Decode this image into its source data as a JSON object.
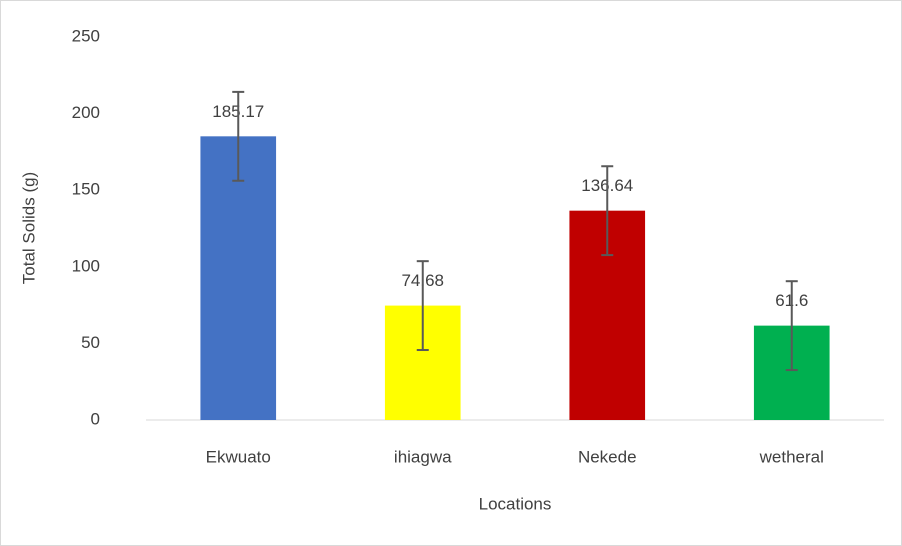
{
  "chart_data": {
    "type": "bar",
    "ylabel": "Total Solids (g)",
    "xlabel": "Locations",
    "categories": [
      "Ekwuato",
      "ihiagwa",
      "Nekede",
      "wetheral"
    ],
    "values": [
      185.17,
      74.68,
      136.64,
      61.6
    ],
    "errors": [
      29,
      29,
      29,
      29
    ],
    "colors": [
      "#4472c4",
      "#ffff00",
      "#c00000",
      "#00b050"
    ],
    "error_color": "#595959",
    "ylim": [
      0,
      250
    ],
    "yticks": [
      0,
      50,
      100,
      150,
      200,
      250
    ],
    "grid": false
  }
}
